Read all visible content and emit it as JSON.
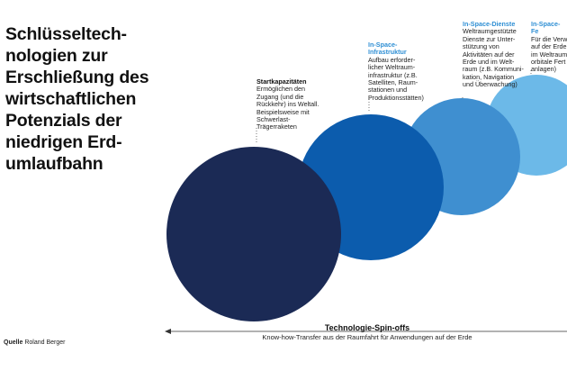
{
  "title_lines": [
    "Schlüsseltech-",
    "nologien zur",
    "Erschließung des",
    "wirtschaftlichen",
    "Potenzials der",
    "niedrigen Erd-",
    "umlaufbahn"
  ],
  "stages": [
    {
      "heading": "Startkapazitäten",
      "lines": [
        "Ermöglichen den",
        "Zugang (und die",
        "Rückkehr) ins Weltall.",
        "Beispielsweise mit",
        "Schwerlast-",
        "Trägerraketen"
      ],
      "color": "#1b2a55"
    },
    {
      "heading": "In-Space-\nInfrastruktur",
      "lines": [
        "Aufbau erforder-",
        "licher Weltraum-",
        "infrastruktur (z.B.",
        "Satelliten, Raum-",
        "stationen und",
        "Produktionsstätten)"
      ],
      "color": "#0c5cad"
    },
    {
      "heading": "In-Space-Dienste",
      "lines": [
        "Weltraumgestützte",
        "Dienste zur Unter-",
        "stützung von",
        "Aktivitäten auf der",
        "Erde und im Welt-",
        "raum (z.B. Kommuni-",
        "kation, Navigation",
        "und Überwachung)"
      ],
      "color": "#3f8fd0"
    },
    {
      "heading": "In-Space-Fe",
      "lines": [
        "Für die Verw",
        "auf der Erde",
        "im Weltraum",
        "orbitale Fert",
        "anlagen)"
      ],
      "color": "#6cb9e8"
    }
  ],
  "spinoff": {
    "title": "Technologie-Spin-offs",
    "subtitle": "Know-how-Transfer aus der Raumfahrt für Anwendungen auf der Erde"
  },
  "source": {
    "label": "Quelle",
    "value": "Roland Berger"
  }
}
